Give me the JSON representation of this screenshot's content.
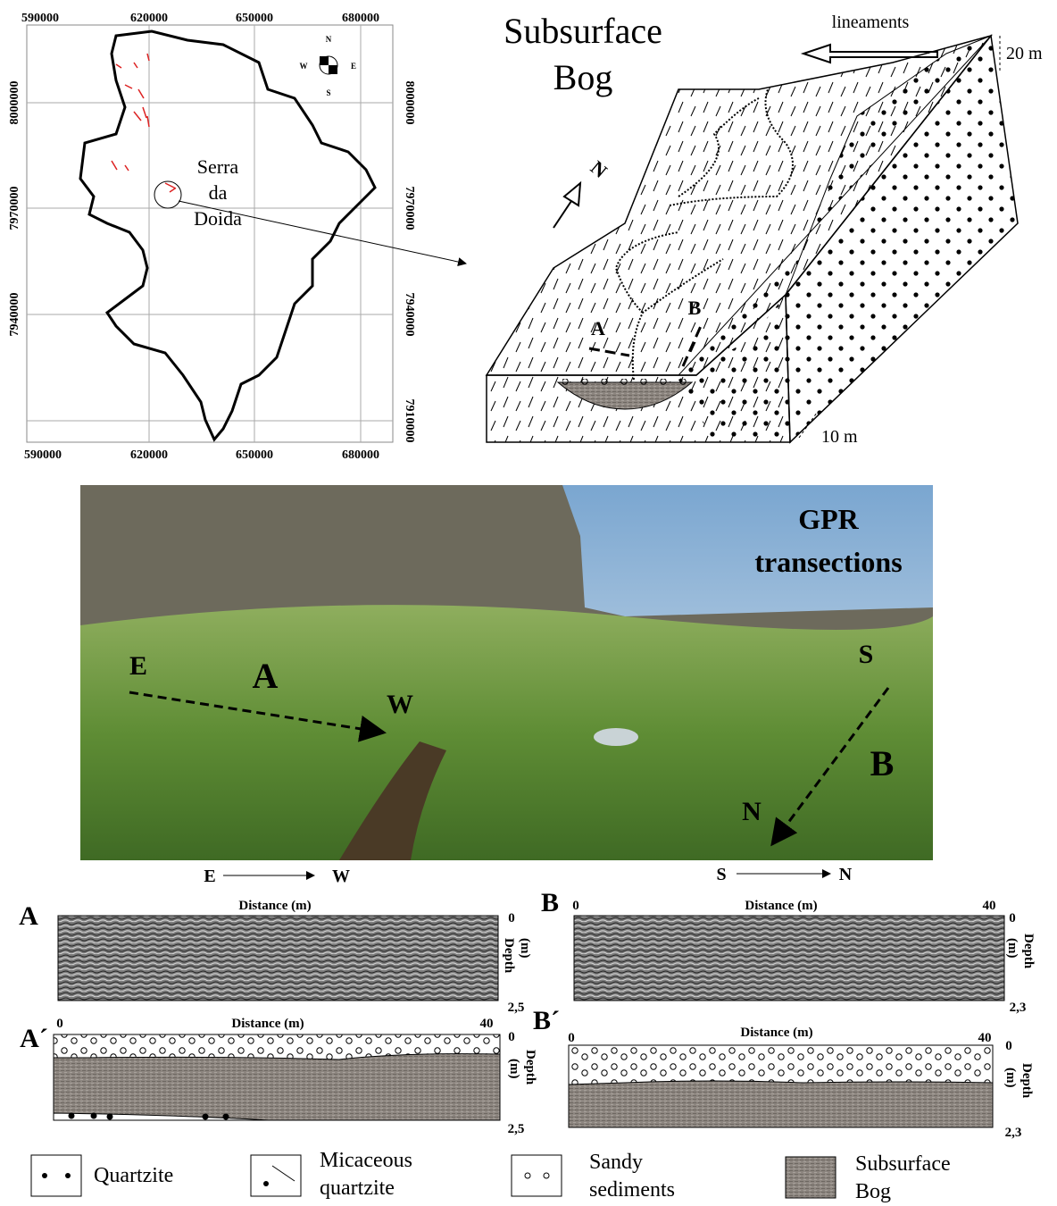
{
  "map": {
    "x_labels_top": [
      "590000",
      "620000",
      "650000",
      "680000"
    ],
    "x_labels_bottom": [
      "590000",
      "620000",
      "650000",
      "680000"
    ],
    "y_labels_left": [
      "8000000",
      "7970000",
      "7940000"
    ],
    "y_labels_right": [
      "8000000",
      "7970000",
      "7940000",
      "7910000"
    ],
    "compass": {
      "n": "N",
      "s": "S",
      "w": "W",
      "e": "E"
    },
    "place_label": [
      "Serra",
      "da",
      "Doida"
    ]
  },
  "block_diagram": {
    "title": [
      "Subsurface",
      "Bog"
    ],
    "lineaments": "lineaments",
    "height_scale": "20 m",
    "north": "N",
    "section_a": "A",
    "section_b": "B",
    "width_scale": "10 m"
  },
  "photo": {
    "title": [
      "GPR",
      "transections"
    ],
    "a_start": "E",
    "a_label": "A",
    "a_end": "W",
    "b_start": "S",
    "b_label": "B",
    "b_end": "N"
  },
  "directions": {
    "a_from": "E",
    "a_to": "W",
    "b_from": "S",
    "b_to": "N"
  },
  "profiles": [
    {
      "label": "A",
      "x_title": "Distance (m)",
      "top_depth": "0",
      "depth_title": [
        "Depth",
        "(m)"
      ],
      "bottom_depth": "2,5"
    },
    {
      "label": "B",
      "x_start": "0",
      "x_title": "Distance (m)",
      "x_end": "40",
      "top_depth": "0",
      "depth_title": [
        "Depth",
        "(m)"
      ],
      "bottom_depth": "2,3"
    },
    {
      "label": "A´",
      "x_start": "0",
      "x_title": "Distance (m)",
      "x_end": "40",
      "top_depth": "0",
      "depth_title": [
        "Depth",
        "(m)"
      ],
      "bottom_depth": "2,5"
    },
    {
      "label": "B´",
      "x_start": "0",
      "x_title": "Distance (m)",
      "x_end": "40",
      "top_depth": "0",
      "depth_title": [
        "Depth",
        "(m)"
      ],
      "bottom_depth": "2,3"
    }
  ],
  "legend": [
    {
      "lines": [
        "Quartzite"
      ]
    },
    {
      "lines": [
        "Micaceous",
        "quartzite"
      ]
    },
    {
      "lines": [
        "Sandy",
        "sediments"
      ]
    },
    {
      "lines": [
        "Subsurface",
        "Bog"
      ]
    }
  ]
}
